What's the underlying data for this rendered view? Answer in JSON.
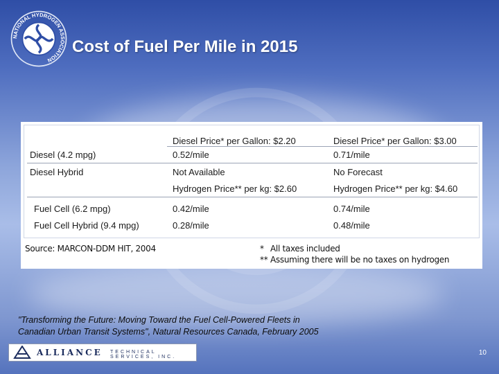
{
  "slide": {
    "title": "Cost of Fuel Per Mile in 2015",
    "logo_text": "NATIONAL HYDROGEN ASSOCIATION"
  },
  "table": {
    "diesel_header": [
      "Diesel Price* per Gallon: $2.20",
      "Diesel Price* per Gallon: $3.00"
    ],
    "rows_diesel": [
      {
        "label": "Diesel (4.2 mpg)",
        "values": [
          "0.52/mile",
          "0.71/mile"
        ]
      },
      {
        "label": "Diesel Hybrid",
        "values": [
          "Not Available",
          "No Forecast"
        ]
      }
    ],
    "hydrogen_header": [
      "Hydrogen Price** per kg: $2.60",
      "Hydrogen Price** per kg: $4.60"
    ],
    "rows_hydrogen": [
      {
        "label": "Fuel Cell (6.2 mpg)",
        "values": [
          "0.42/mile",
          "0.74/mile"
        ]
      },
      {
        "label": "Fuel Cell Hybrid (9.4 mpg)",
        "values": [
          "0.28/mile",
          "0.48/mile"
        ]
      }
    ]
  },
  "notes": {
    "source": "Source: MARCON-DDM HIT, 2004",
    "note1_mark": "*",
    "note1": "All taxes included",
    "note2_mark": "**",
    "note2": "Assuming there will be no taxes on hydrogen"
  },
  "quote": {
    "line1": "\"Transforming the Future: Moving Toward the Fuel Cell-Powered Fleets in",
    "line2": "Canadian Urban Transit Systems\", Natural Resources Canada, February 2005"
  },
  "footer": {
    "brand": "ALLIANCE",
    "brand_sub": "TECHNICAL SERVICES, INC.",
    "page_number": "10"
  },
  "colors": {
    "background_top": "#2f4ea6",
    "background_mid": "#a9bde8",
    "brand": "#1c2d5e"
  }
}
